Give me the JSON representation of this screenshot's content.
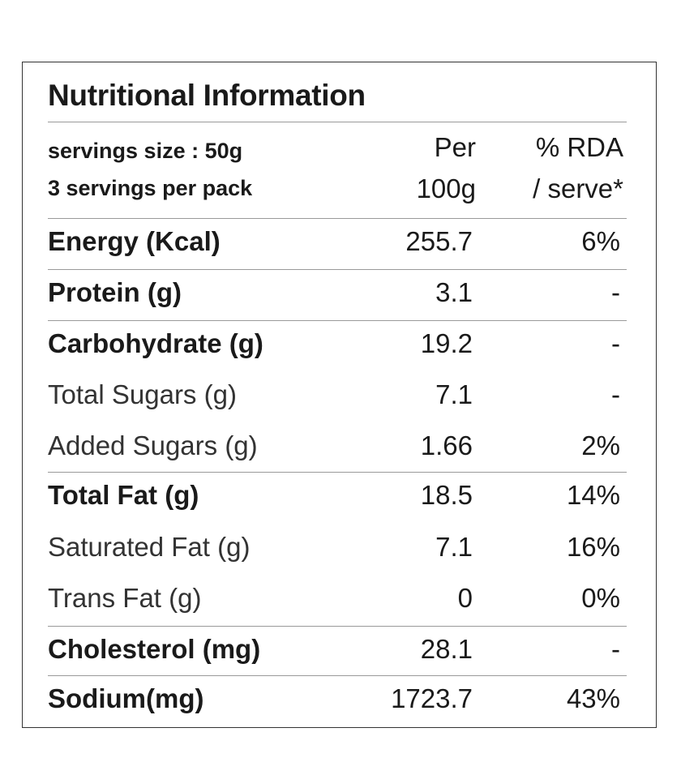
{
  "panel": {
    "title": "Nutritional Information",
    "header": {
      "serving_size": "servings size : 50g",
      "servings_per_pack": "3 servings per pack",
      "per_line1": "Per",
      "per_line2": "100g",
      "rda_line1": "% RDA",
      "rda_line2": "/ serve*"
    },
    "rows": [
      {
        "label": "Energy (Kcal)",
        "per": "255.7",
        "rda": "6%"
      },
      {
        "label": "Protein (g)",
        "per": "3.1",
        "rda": "-"
      },
      {
        "label": "Carbohydrate (g)",
        "per": "19.2",
        "rda": "-"
      },
      {
        "label": "Total Sugars (g)",
        "per": "7.1",
        "rda": "-"
      },
      {
        "label": "Added Sugars (g)",
        "per": "1.66",
        "rda": "2%"
      },
      {
        "label": "Total Fat (g)",
        "per": "18.5",
        "rda": "14%"
      },
      {
        "label": "Saturated Fat (g)",
        "per": "7.1",
        "rda": "16%"
      },
      {
        "label": "Trans Fat (g)",
        "per": "0",
        "rda": "0%"
      },
      {
        "label": "Cholesterol (mg)",
        "per": "28.1",
        "rda": "-"
      },
      {
        "label": "Sodium(mg)",
        "per": "1723.7",
        "rda": "43%"
      }
    ]
  }
}
